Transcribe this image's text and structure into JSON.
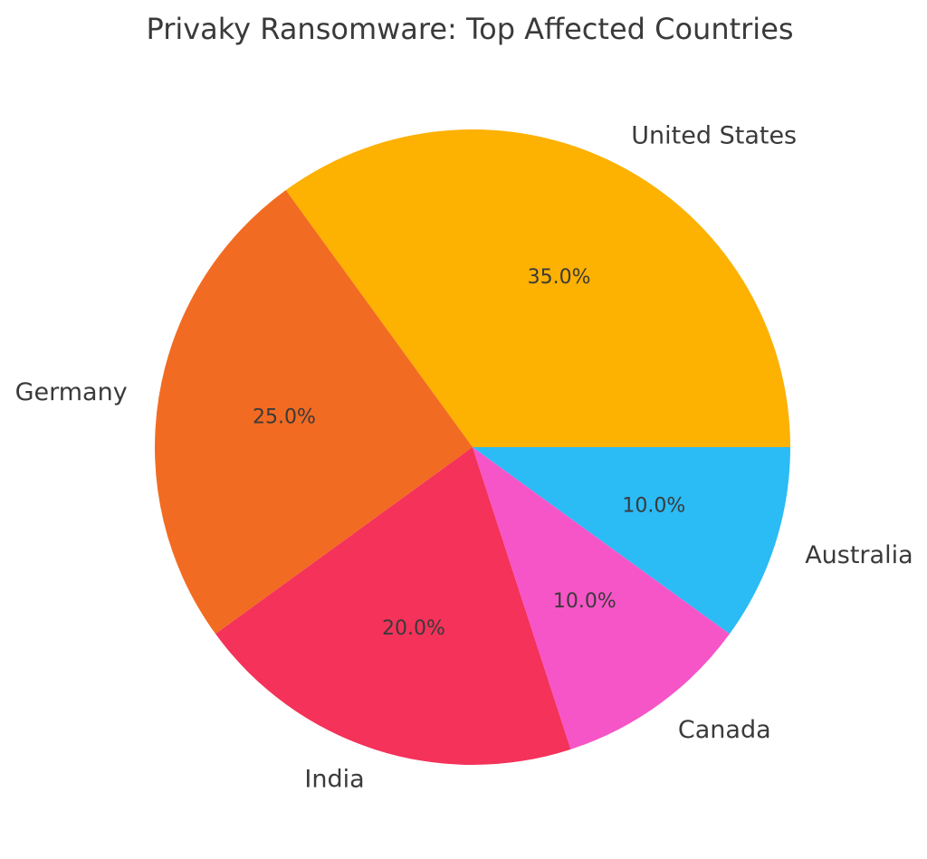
{
  "page": {
    "background_color": "#ffffff",
    "text_color": "#3a3a3a"
  },
  "chart_data": {
    "type": "pie",
    "title": "Privaky Ransomware: Top Affected Countries",
    "categories": [
      "United States",
      "Germany",
      "India",
      "Canada",
      "Australia"
    ],
    "values": [
      35.0,
      25.0,
      20.0,
      10.0,
      10.0
    ],
    "slices": [
      {
        "label": "United States",
        "value": 35.0,
        "pct_label": "35.0%",
        "color": "#FDB101"
      },
      {
        "label": "Germany",
        "value": 25.0,
        "pct_label": "25.0%",
        "color": "#F26B22"
      },
      {
        "label": "India",
        "value": 20.0,
        "pct_label": "20.0%",
        "color": "#F4325A"
      },
      {
        "label": "Canada",
        "value": 10.0,
        "pct_label": "10.0%",
        "color": "#F655C8"
      },
      {
        "label": "Australia",
        "value": 10.0,
        "pct_label": "10.0%",
        "color": "#2BBBF5"
      }
    ],
    "start_angle_deg": 0,
    "counterclockwise": true,
    "legend": "none",
    "grid": false,
    "label_radius_fraction": 1.1,
    "pct_radius_fraction": 0.6,
    "text_color": "#3a3a3a"
  }
}
